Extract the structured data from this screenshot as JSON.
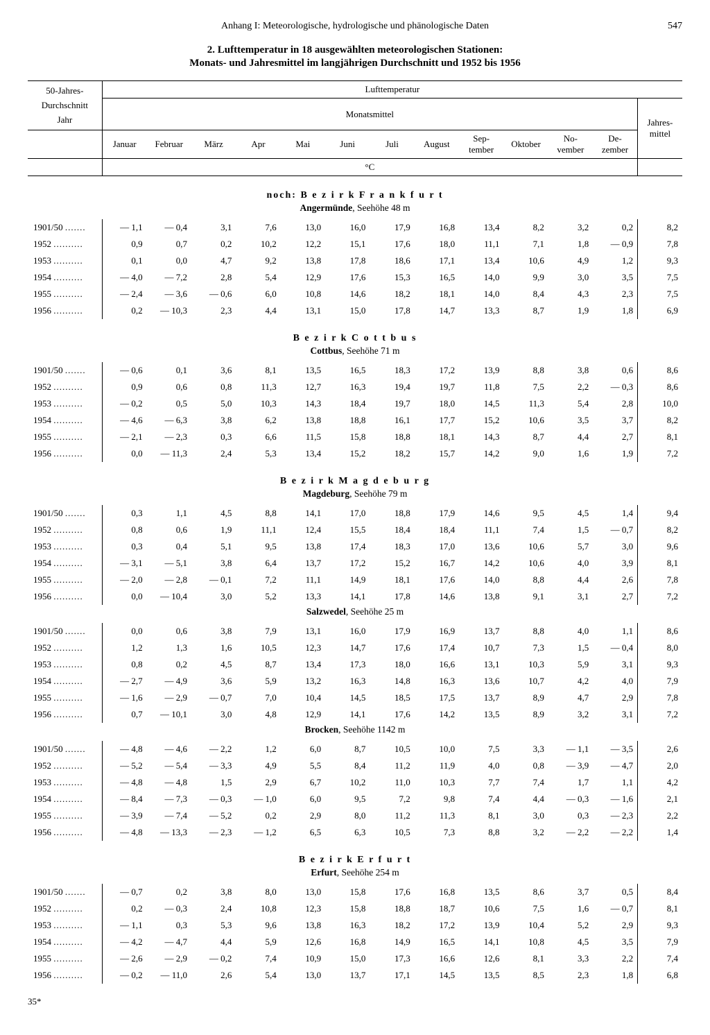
{
  "page": {
    "running_head": "Anhang I: Meteorologische, hydrologische und phänologische Daten",
    "number": "547",
    "title_line1": "2. Lufttemperatur in 18 ausgewählten meteorologischen Stationen:",
    "title_line2": "Monats- und Jahresmittel im langjährigen Durchschnitt und 1952 bis 1956",
    "footer": "35*"
  },
  "header": {
    "left_top": "50-Jahres-",
    "left_mid": "Durchschnitt",
    "left_bot": "Jahr",
    "group1": "Lufttemperatur",
    "group2": "Monatsmittel",
    "annual": "Jahres-\nmittel",
    "unit": "°C",
    "months": [
      "Januar",
      "Februar",
      "März",
      "Apr",
      "Mai",
      "Juni",
      "Juli",
      "August",
      "Sep-\ntember",
      "Oktober",
      "No-\nvember",
      "De-\nzember"
    ]
  },
  "sections": [
    {
      "district": "noch: B e z i r k  F r a n k f u r t",
      "stations": [
        {
          "name": "Angermünde, Seehöhe 48 m",
          "rows": [
            {
              "year": "1901/50",
              "v": [
                "— 1,1",
                "— 0,4",
                "3,1",
                "7,6",
                "13,0",
                "16,0",
                "17,9",
                "16,8",
                "13,4",
                "8,2",
                "3,2",
                "0,2",
                "8,2"
              ]
            },
            {
              "year": "1952",
              "v": [
                "0,9",
                "0,7",
                "0,2",
                "10,2",
                "12,2",
                "15,1",
                "17,6",
                "18,0",
                "11,1",
                "7,1",
                "1,8",
                "— 0,9",
                "7,8"
              ]
            },
            {
              "year": "1953",
              "v": [
                "0,1",
                "0,0",
                "4,7",
                "9,2",
                "13,8",
                "17,8",
                "18,6",
                "17,1",
                "13,4",
                "10,6",
                "4,9",
                "1,2",
                "9,3"
              ]
            },
            {
              "year": "1954",
              "v": [
                "— 4,0",
                "— 7,2",
                "2,8",
                "5,4",
                "12,9",
                "17,6",
                "15,3",
                "16,5",
                "14,0",
                "9,9",
                "3,0",
                "3,5",
                "7,5"
              ]
            },
            {
              "year": "1955",
              "v": [
                "— 2,4",
                "— 3,6",
                "— 0,6",
                "6,0",
                "10,8",
                "14,6",
                "18,2",
                "18,1",
                "14,0",
                "8,4",
                "4,3",
                "2,3",
                "7,5"
              ]
            },
            {
              "year": "1956",
              "v": [
                "0,2",
                "— 10,3",
                "2,3",
                "4,4",
                "13,1",
                "15,0",
                "17,8",
                "14,7",
                "13,3",
                "8,7",
                "1,9",
                "1,8",
                "6,9"
              ]
            }
          ]
        }
      ]
    },
    {
      "district": "B e z i r k  C o t t b u s",
      "stations": [
        {
          "name": "Cottbus, Seehöhe 71 m",
          "rows": [
            {
              "year": "1901/50",
              "v": [
                "— 0,6",
                "0,1",
                "3,6",
                "8,1",
                "13,5",
                "16,5",
                "18,3",
                "17,2",
                "13,9",
                "8,8",
                "3,8",
                "0,6",
                "8,6"
              ]
            },
            {
              "year": "1952",
              "v": [
                "0,9",
                "0,6",
                "0,8",
                "11,3",
                "12,7",
                "16,3",
                "19,4",
                "19,7",
                "11,8",
                "7,5",
                "2,2",
                "— 0,3",
                "8,6"
              ]
            },
            {
              "year": "1953",
              "v": [
                "— 0,2",
                "0,5",
                "5,0",
                "10,3",
                "14,3",
                "18,4",
                "19,7",
                "18,0",
                "14,5",
                "11,3",
                "5,4",
                "2,8",
                "10,0"
              ]
            },
            {
              "year": "1954",
              "v": [
                "— 4,6",
                "— 6,3",
                "3,8",
                "6,2",
                "13,8",
                "18,8",
                "16,1",
                "17,7",
                "15,2",
                "10,6",
                "3,5",
                "3,7",
                "8,2"
              ]
            },
            {
              "year": "1955",
              "v": [
                "— 2,1",
                "— 2,3",
                "0,3",
                "6,6",
                "11,5",
                "15,8",
                "18,8",
                "18,1",
                "14,3",
                "8,7",
                "4,4",
                "2,7",
                "8,1"
              ]
            },
            {
              "year": "1956",
              "v": [
                "0,0",
                "— 11,3",
                "2,4",
                "5,3",
                "13,4",
                "15,2",
                "18,2",
                "15,7",
                "14,2",
                "9,0",
                "1,6",
                "1,9",
                "7,2"
              ]
            }
          ]
        }
      ]
    },
    {
      "district": "B e z i r k  M a g d e b u r g",
      "stations": [
        {
          "name": "Magdeburg, Seehöhe 79 m",
          "rows": [
            {
              "year": "1901/50",
              "v": [
                "0,3",
                "1,1",
                "4,5",
                "8,8",
                "14,1",
                "17,0",
                "18,8",
                "17,9",
                "14,6",
                "9,5",
                "4,5",
                "1,4",
                "9,4"
              ]
            },
            {
              "year": "1952",
              "v": [
                "0,8",
                "0,6",
                "1,9",
                "11,1",
                "12,4",
                "15,5",
                "18,4",
                "18,4",
                "11,1",
                "7,4",
                "1,5",
                "— 0,7",
                "8,2"
              ]
            },
            {
              "year": "1953",
              "v": [
                "0,3",
                "0,4",
                "5,1",
                "9,5",
                "13,8",
                "17,4",
                "18,3",
                "17,0",
                "13,6",
                "10,6",
                "5,7",
                "3,0",
                "9,6"
              ]
            },
            {
              "year": "1954",
              "v": [
                "— 3,1",
                "— 5,1",
                "3,8",
                "6,4",
                "13,7",
                "17,2",
                "15,2",
                "16,7",
                "14,2",
                "10,6",
                "4,0",
                "3,9",
                "8,1"
              ]
            },
            {
              "year": "1955",
              "v": [
                "— 2,0",
                "— 2,8",
                "— 0,1",
                "7,2",
                "11,1",
                "14,9",
                "18,1",
                "17,6",
                "14,0",
                "8,8",
                "4,4",
                "2,6",
                "7,8"
              ]
            },
            {
              "year": "1956",
              "v": [
                "0,0",
                "— 10,4",
                "3,0",
                "5,2",
                "13,3",
                "14,1",
                "17,8",
                "14,6",
                "13,8",
                "9,1",
                "3,1",
                "2,7",
                "7,2"
              ]
            }
          ]
        },
        {
          "name": "Salzwedel, Seehöhe 25 m",
          "rows": [
            {
              "year": "1901/50",
              "v": [
                "0,0",
                "0,6",
                "3,8",
                "7,9",
                "13,1",
                "16,0",
                "17,9",
                "16,9",
                "13,7",
                "8,8",
                "4,0",
                "1,1",
                "8,6"
              ]
            },
            {
              "year": "1952",
              "v": [
                "1,2",
                "1,3",
                "1,6",
                "10,5",
                "12,3",
                "14,7",
                "17,6",
                "17,4",
                "10,7",
                "7,3",
                "1,5",
                "— 0,4",
                "8,0"
              ]
            },
            {
              "year": "1953",
              "v": [
                "0,8",
                "0,2",
                "4,5",
                "8,7",
                "13,4",
                "17,3",
                "18,0",
                "16,6",
                "13,1",
                "10,3",
                "5,9",
                "3,1",
                "9,3"
              ]
            },
            {
              "year": "1954",
              "v": [
                "— 2,7",
                "— 4,9",
                "3,6",
                "5,9",
                "13,2",
                "16,3",
                "14,8",
                "16,3",
                "13,6",
                "10,7",
                "4,2",
                "4,0",
                "7,9"
              ]
            },
            {
              "year": "1955",
              "v": [
                "— 1,6",
                "— 2,9",
                "— 0,7",
                "7,0",
                "10,4",
                "14,5",
                "18,5",
                "17,5",
                "13,7",
                "8,9",
                "4,7",
                "2,9",
                "7,8"
              ]
            },
            {
              "year": "1956",
              "v": [
                "0,7",
                "— 10,1",
                "3,0",
                "4,8",
                "12,9",
                "14,1",
                "17,6",
                "14,2",
                "13,5",
                "8,9",
                "3,2",
                "3,1",
                "7,2"
              ]
            }
          ]
        },
        {
          "name": "Brocken, Seehöhe 1142 m",
          "rows": [
            {
              "year": "1901/50",
              "v": [
                "— 4,8",
                "— 4,6",
                "— 2,2",
                "1,2",
                "6,0",
                "8,7",
                "10,5",
                "10,0",
                "7,5",
                "3,3",
                "— 1,1",
                "— 3,5",
                "2,6"
              ]
            },
            {
              "year": "1952",
              "v": [
                "— 5,2",
                "— 5,4",
                "— 3,3",
                "4,9",
                "5,5",
                "8,4",
                "11,2",
                "11,9",
                "4,0",
                "0,8",
                "— 3,9",
                "— 4,7",
                "2,0"
              ]
            },
            {
              "year": "1953",
              "v": [
                "— 4,8",
                "— 4,8",
                "1,5",
                "2,9",
                "6,7",
                "10,2",
                "11,0",
                "10,3",
                "7,7",
                "7,4",
                "1,7",
                "1,1",
                "4,2"
              ]
            },
            {
              "year": "1954",
              "v": [
                "— 8,4",
                "— 7,3",
                "— 0,3",
                "— 1,0",
                "6,0",
                "9,5",
                "7,2",
                "9,8",
                "7,4",
                "4,4",
                "— 0,3",
                "— 1,6",
                "2,1"
              ]
            },
            {
              "year": "1955",
              "v": [
                "— 3,9",
                "— 7,4",
                "— 5,2",
                "0,2",
                "2,9",
                "8,0",
                "11,2",
                "11,3",
                "8,1",
                "3,0",
                "0,3",
                "— 2,3",
                "2,2"
              ]
            },
            {
              "year": "1956",
              "v": [
                "— 4,8",
                "— 13,3",
                "— 2,3",
                "— 1,2",
                "6,5",
                "6,3",
                "10,5",
                "7,3",
                "8,8",
                "3,2",
                "— 2,2",
                "— 2,2",
                "1,4"
              ]
            }
          ]
        }
      ]
    },
    {
      "district": "B e z i r k  E r f u r t",
      "stations": [
        {
          "name": "Erfurt, Seehöhe 254 m",
          "rows": [
            {
              "year": "1901/50",
              "v": [
                "— 0,7",
                "0,2",
                "3,8",
                "8,0",
                "13,0",
                "15,8",
                "17,6",
                "16,8",
                "13,5",
                "8,6",
                "3,7",
                "0,5",
                "8,4"
              ]
            },
            {
              "year": "1952",
              "v": [
                "0,2",
                "— 0,3",
                "2,4",
                "10,8",
                "12,3",
                "15,8",
                "18,8",
                "18,7",
                "10,6",
                "7,5",
                "1,6",
                "— 0,7",
                "8,1"
              ]
            },
            {
              "year": "1953",
              "v": [
                "— 1,1",
                "0,3",
                "5,3",
                "9,6",
                "13,8",
                "16,3",
                "18,2",
                "17,2",
                "13,9",
                "10,4",
                "5,2",
                "2,9",
                "9,3"
              ]
            },
            {
              "year": "1954",
              "v": [
                "— 4,2",
                "— 4,7",
                "4,4",
                "5,9",
                "12,6",
                "16,8",
                "14,9",
                "16,5",
                "14,1",
                "10,8",
                "4,5",
                "3,5",
                "7,9"
              ]
            },
            {
              "year": "1955",
              "v": [
                "— 2,6",
                "— 2,9",
                "— 0,2",
                "7,4",
                "10,9",
                "15,0",
                "17,3",
                "16,6",
                "12,6",
                "8,1",
                "3,3",
                "2,2",
                "7,4"
              ]
            },
            {
              "year": "1956",
              "v": [
                "— 0,2",
                "— 11,0",
                "2,6",
                "5,4",
                "13,0",
                "13,7",
                "17,1",
                "14,5",
                "13,5",
                "8,5",
                "2,3",
                "1,8",
                "6,8"
              ]
            }
          ]
        }
      ]
    }
  ]
}
